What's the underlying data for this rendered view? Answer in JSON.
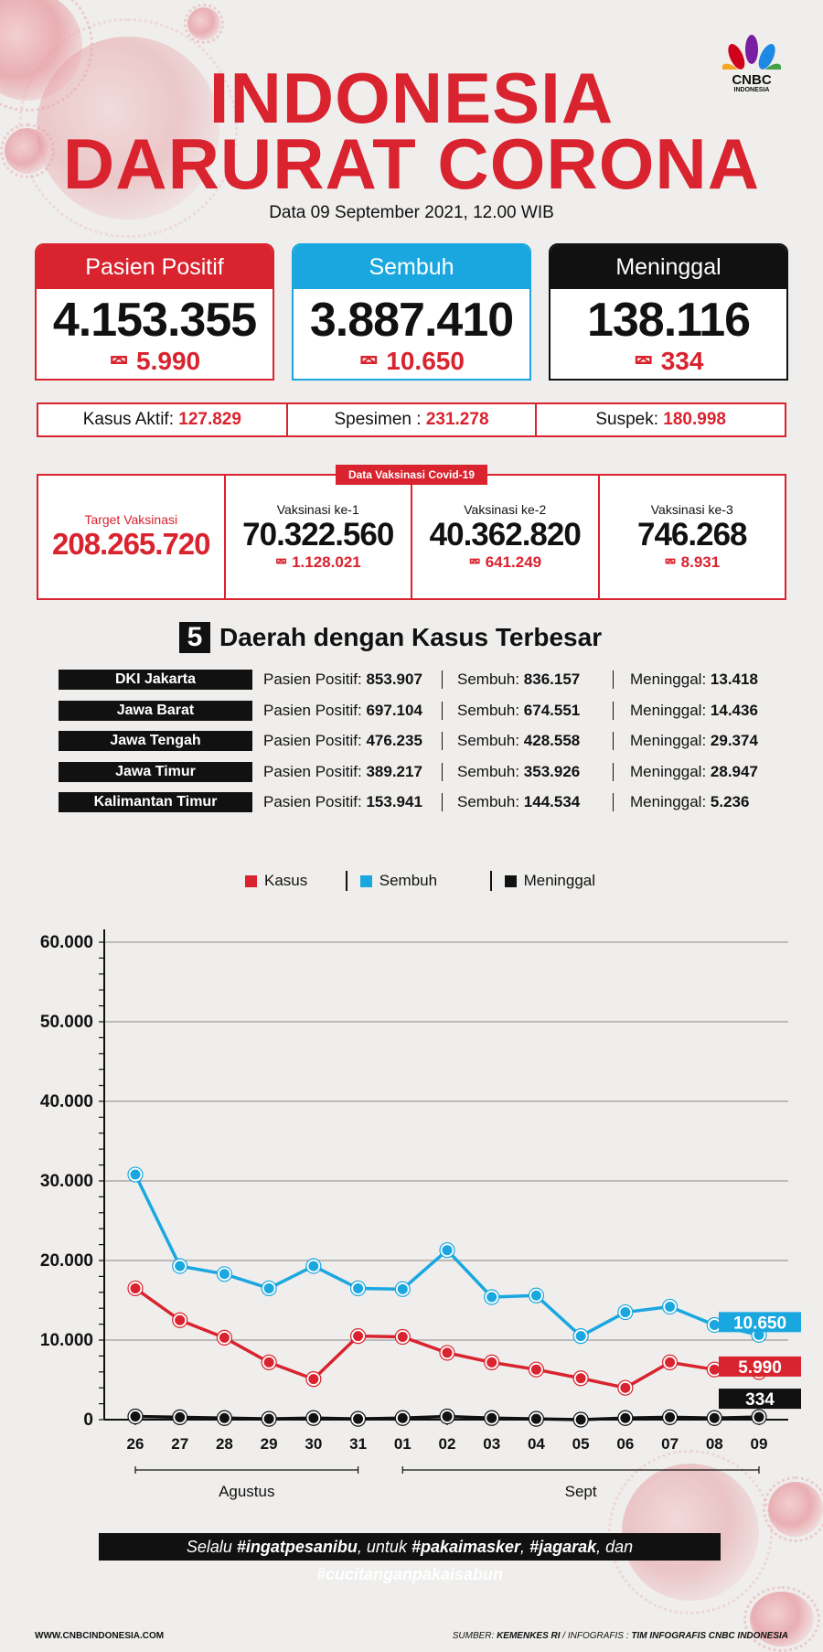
{
  "brand": {
    "logo_text": "CNBC",
    "logo_sub": "INDONESIA"
  },
  "title_line1": "INDONESIA",
  "title_line2": "DARURAT CORONA",
  "date": "Data 09 September 2021, 12.00 WIB",
  "cards": [
    {
      "label": "Pasien Positif",
      "value": "4.153.355",
      "delta": "5.990",
      "color": "#d9232e"
    },
    {
      "label": "Sembuh",
      "value": "3.887.410",
      "delta": "10.650",
      "color": "#1aa7e0"
    },
    {
      "label": "Meninggal",
      "value": "138.116",
      "delta": "334",
      "color": "#111111"
    }
  ],
  "stats": [
    {
      "label": "Kasus Aktif:",
      "value": "127.829"
    },
    {
      "label": "Spesimen :",
      "value": "231.278"
    },
    {
      "label": "Suspek:",
      "value": "180.998"
    }
  ],
  "vaccination": {
    "tag": "Data Vaksinasi Covid-19",
    "target_label": "Target Vaksinasi",
    "target_value": "208.265.720",
    "doses": [
      {
        "label": "Vaksinasi ke-1",
        "value": "70.322.560",
        "delta": "1.128.021"
      },
      {
        "label": "Vaksinasi ke-2",
        "value": "40.362.820",
        "delta": "641.249"
      },
      {
        "label": "Vaksinasi ke-3",
        "value": "746.268",
        "delta": "8.931"
      }
    ]
  },
  "regions_title_num": "5",
  "regions_title": "Daerah dengan Kasus Terbesar",
  "regions": [
    {
      "name": "DKI Jakarta",
      "positif": "853.907",
      "sembuh": "836.157",
      "meninggal": "13.418"
    },
    {
      "name": "Jawa Barat",
      "positif": "697.104",
      "sembuh": "674.551",
      "meninggal": "14.436"
    },
    {
      "name": "Jawa Tengah",
      "positif": "476.235",
      "sembuh": "428.558",
      "meninggal": "29.374"
    },
    {
      "name": "Jawa Timur",
      "positif": "389.217",
      "sembuh": "353.926",
      "meninggal": "28.947"
    },
    {
      "name": "Kalimantan Timur",
      "positif": "153.941",
      "sembuh": "144.534",
      "meninggal": "5.236"
    }
  ],
  "region_labels": {
    "positif": "Pasien Positif:",
    "sembuh": "Sembuh:",
    "meninggal": "Meninggal:"
  },
  "chart_data": {
    "type": "line",
    "categories": [
      "26",
      "27",
      "28",
      "29",
      "30",
      "31",
      "01",
      "02",
      "03",
      "04",
      "05",
      "06",
      "07",
      "08",
      "09"
    ],
    "groups": [
      {
        "label": "Agustus",
        "from": "26",
        "to": "31"
      },
      {
        "label": "Sept",
        "from": "01",
        "to": "09"
      }
    ],
    "ylim": [
      0,
      60000
    ],
    "yticks": [
      0,
      10000,
      20000,
      30000,
      40000,
      50000,
      60000
    ],
    "ytick_labels": [
      "0",
      "10.000",
      "20.000",
      "30.000",
      "40.000",
      "50.000",
      "60.000"
    ],
    "grid": true,
    "legend_position": "top",
    "series": [
      {
        "name": "Kasus",
        "color": "#d9232e",
        "values": [
          16500,
          12500,
          10300,
          7200,
          5100,
          10500,
          10400,
          8400,
          7200,
          6300,
          5200,
          4000,
          7200,
          6300,
          5990
        ],
        "end_label": "5.990"
      },
      {
        "name": "Sembuh",
        "color": "#1aa7e0",
        "values": [
          30800,
          19300,
          18300,
          16500,
          19300,
          16500,
          16400,
          21300,
          15400,
          15600,
          10500,
          13500,
          14200,
          11900,
          10650
        ],
        "end_label": "10.650"
      },
      {
        "name": "Meninggal",
        "color": "#111111",
        "values": [
          400,
          300,
          200,
          100,
          200,
          100,
          200,
          400,
          200,
          100,
          0,
          200,
          300,
          200,
          334
        ],
        "end_label": "334"
      }
    ]
  },
  "slogan_parts": [
    "Selalu ",
    "#ingatpesanibu",
    ", untuk ",
    "#pakaimasker",
    ", ",
    "#jagarak",
    ", dan ",
    "#cucitanganpakaisabun"
  ],
  "footer_left": "WWW.CNBCINDONESIA.COM",
  "footer_right_prefix": "SUMBER: ",
  "footer_right_source": "KEMENKES RI",
  "footer_right_mid": " / INFOGRAFIS : ",
  "footer_right_team": "TIM INFOGRAFIS CNBC INDONESIA"
}
